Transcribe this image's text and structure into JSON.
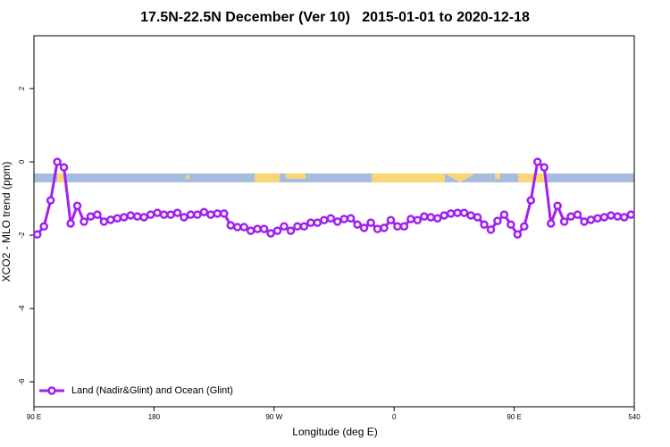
{
  "chart_data": {
    "type": "line",
    "title": "17.5N-22.5N December (Ver 10)   2015-01-01 to 2020-12-18",
    "xlabel": "Longitude (deg E)",
    "ylabel": "XCO2 - MLO trend (ppm)",
    "x": [
      92.5,
      97.5,
      102.5,
      107.5,
      112.5,
      117.5,
      122.5,
      127.5,
      132.5,
      137.5,
      142.5,
      147.5,
      152.5,
      157.5,
      162.5,
      167.5,
      172.5,
      177.5,
      182.5,
      187.5,
      192.5,
      197.5,
      202.5,
      207.5,
      212.5,
      217.5,
      222.5,
      227.5,
      232.5,
      237.5,
      242.5,
      247.5,
      252.5,
      257.5,
      262.5,
      267.5,
      272.5,
      277.5,
      282.5,
      287.5,
      292.5,
      297.5,
      302.5,
      307.5,
      312.5,
      317.5,
      322.5,
      327.5,
      332.5,
      337.5,
      342.5,
      347.5,
      352.5,
      357.5,
      362.5,
      367.5,
      372.5,
      377.5,
      382.5,
      387.5,
      392.5,
      397.5,
      402.5,
      407.5,
      412.5,
      417.5,
      422.5,
      427.5,
      432.5,
      437.5,
      442.5,
      447.5,
      452.5,
      457.5,
      462.5,
      467.5,
      472.5,
      477.5,
      482.5,
      487.5,
      492.5,
      497.5,
      502.5,
      507.5,
      512.5,
      517.5,
      522.5,
      527.5,
      532.5,
      537.5
    ],
    "series": [
      {
        "name": "Land (Nadir&Glint) and Ocean (Glint)",
        "color": "#a020f0",
        "values": [
          -1.98,
          -1.76,
          -1.05,
          0.0,
          -0.15,
          -1.68,
          -1.2,
          -1.63,
          -1.49,
          -1.44,
          -1.63,
          -1.58,
          -1.54,
          -1.51,
          -1.46,
          -1.49,
          -1.51,
          -1.44,
          -1.39,
          -1.44,
          -1.44,
          -1.39,
          -1.51,
          -1.44,
          -1.44,
          -1.37,
          -1.44,
          -1.41,
          -1.41,
          -1.73,
          -1.78,
          -1.78,
          -1.88,
          -1.83,
          -1.83,
          -1.95,
          -1.88,
          -1.76,
          -1.88,
          -1.76,
          -1.76,
          -1.66,
          -1.66,
          -1.59,
          -1.54,
          -1.63,
          -1.56,
          -1.54,
          -1.71,
          -1.8,
          -1.66,
          -1.83,
          -1.8,
          -1.59,
          -1.76,
          -1.76,
          -1.56,
          -1.59,
          -1.49,
          -1.51,
          -1.54,
          -1.46,
          -1.41,
          -1.39,
          -1.39,
          -1.46,
          -1.51,
          -1.71,
          -1.85,
          -1.61,
          -1.44,
          -1.71,
          -1.98,
          -1.76,
          -1.05,
          0.0,
          -0.15,
          -1.68,
          -1.2,
          -1.63,
          -1.49,
          -1.44,
          -1.63,
          -1.58,
          -1.54,
          -1.51,
          -1.46,
          -1.49,
          -1.51,
          -1.44
        ]
      }
    ],
    "xlim": [
      90,
      540
    ],
    "xticks": [
      {
        "value": 90,
        "label": "90 E"
      },
      180,
      {
        "value": 270,
        "label": "90 W"
      },
      {
        "value": 360,
        "label": "0"
      },
      {
        "value": 450,
        "label": "90 E"
      },
      540
    ],
    "ylim": [
      -6.68,
      3.44
    ],
    "yticks": [
      -6,
      -4,
      -2,
      0,
      2
    ],
    "legend": "bottom-left"
  }
}
